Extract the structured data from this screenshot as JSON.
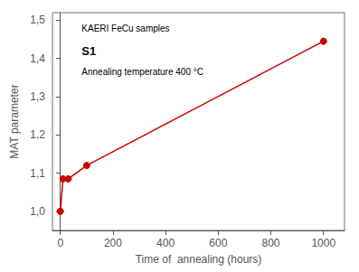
{
  "chart_data": {
    "type": "line",
    "x": [
      0,
      10,
      30,
      100,
      1000
    ],
    "values": [
      1.0,
      1.085,
      1.085,
      1.12,
      1.445
    ],
    "color": "#cc0000",
    "marker": "circle",
    "xlabel": "Time of  annealing (hours)",
    "ylabel": "MAT parameter",
    "xlim": [
      -30,
      1080
    ],
    "ylim": [
      0.95,
      1.52
    ],
    "xticks": [
      0,
      200,
      400,
      600,
      800,
      1000
    ],
    "yticks": [
      {
        "value": 1.0,
        "label": "1,0"
      },
      {
        "value": 1.1,
        "label": "1,1"
      },
      {
        "value": 1.2,
        "label": "1,2"
      },
      {
        "value": 1.3,
        "label": "1,3"
      },
      {
        "value": 1.4,
        "label": "1,4"
      },
      {
        "value": 1.5,
        "label": "1,5"
      }
    ],
    "annotations": [
      "KAERI FeCu samples",
      "S1",
      "Annealing temperature 400 °C"
    ],
    "grid": false
  }
}
